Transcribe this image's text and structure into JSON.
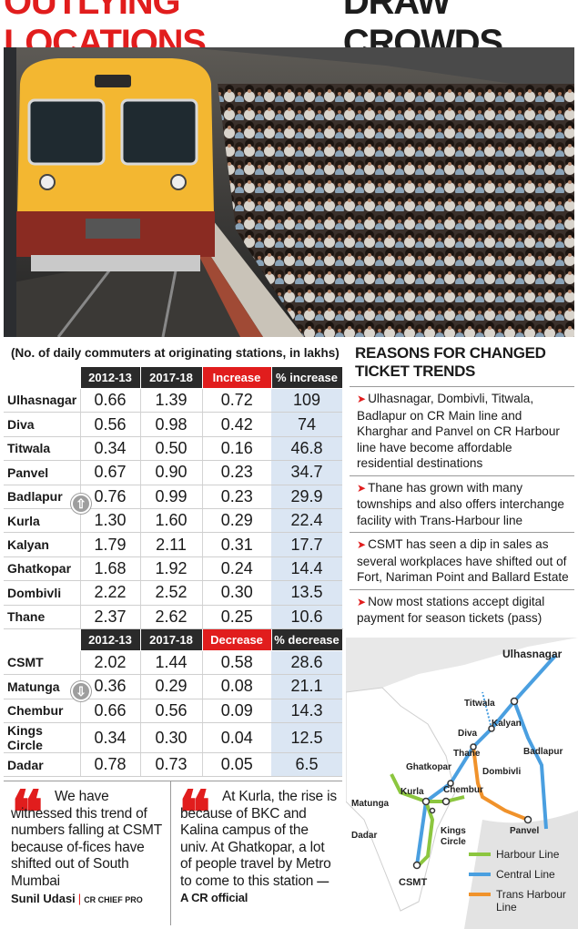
{
  "headline": {
    "part1": "OUTLYING LOCATIONS",
    "part2": "DRAW CROWDS"
  },
  "table": {
    "caption": "(No. of daily commuters at originating stations, in lakhs)",
    "increase_headers": [
      "2012-13",
      "2017-18",
      "Increase",
      "% increase"
    ],
    "increase_rows": [
      {
        "station": "Ulhasnagar",
        "y1": "0.66",
        "y2": "1.39",
        "diff": "0.72",
        "pct": "109"
      },
      {
        "station": "Diva",
        "y1": "0.56",
        "y2": "0.98",
        "diff": "0.42",
        "pct": "74"
      },
      {
        "station": "Titwala",
        "y1": "0.34",
        "y2": "0.50",
        "diff": "0.16",
        "pct": "46.8"
      },
      {
        "station": "Panvel",
        "y1": "0.67",
        "y2": "0.90",
        "diff": "0.23",
        "pct": "34.7"
      },
      {
        "station": "Badlapur",
        "y1": "0.76",
        "y2": "0.99",
        "diff": "0.23",
        "pct": "29.9"
      },
      {
        "station": "Kurla",
        "y1": "1.30",
        "y2": "1.60",
        "diff": "0.29",
        "pct": "22.4"
      },
      {
        "station": "Kalyan",
        "y1": "1.79",
        "y2": "2.11",
        "diff": "0.31",
        "pct": "17.7"
      },
      {
        "station": "Ghatkopar",
        "y1": "1.68",
        "y2": "1.92",
        "diff": "0.24",
        "pct": "14.4"
      },
      {
        "station": "Dombivli",
        "y1": "2.22",
        "y2": "2.52",
        "diff": "0.30",
        "pct": "13.5"
      },
      {
        "station": "Thane",
        "y1": "2.37",
        "y2": "2.62",
        "diff": "0.25",
        "pct": "10.6"
      }
    ],
    "decrease_headers": [
      "2012-13",
      "2017-18",
      "Decrease",
      "% decrease"
    ],
    "decrease_rows": [
      {
        "station": "CSMT",
        "y1": "2.02",
        "y2": "1.44",
        "diff": "0.58",
        "pct": "28.6"
      },
      {
        "station": "Matunga",
        "y1": "0.36",
        "y2": "0.29",
        "diff": "0.08",
        "pct": "21.1"
      },
      {
        "station": "Chembur",
        "y1": "0.66",
        "y2": "0.56",
        "diff": "0.09",
        "pct": "14.3"
      },
      {
        "station": "Kings Circle",
        "y1": "0.34",
        "y2": "0.30",
        "diff": "0.04",
        "pct": "12.5"
      },
      {
        "station": "Dadar",
        "y1": "0.78",
        "y2": "0.73",
        "diff": "0.05",
        "pct": "6.5"
      }
    ],
    "up_arrow": "⇧",
    "down_arrow": "⇩"
  },
  "reasons": {
    "title_line1": "REASONS FOR CHANGED",
    "title_line2": "TICKET TRENDS",
    "items": [
      "Ulhasnagar, Dombivli, Titwala, Badlapur on CR Main line and Kharghar and Panvel on CR Harbour line have become affordable residential destinations",
      "Thane has grown with many townships and also offers interchange facility with Trans-Harbour line",
      "CSMT has seen a dip in sales as several workplaces have shifted out of Fort, Nariman Point and Ballard Estate",
      "Now most stations accept digital payment for season tickets (pass)"
    ]
  },
  "map": {
    "stations": {
      "ulhasnagar": "Ulhasnagar",
      "titwala": "Titwala",
      "kalyan": "Kalyan",
      "diva": "Diva",
      "thane": "Thane",
      "badlapur": "Badlapur",
      "dombivli": "Dombivli",
      "ghatkopar": "Ghatkopar",
      "kurla": "Kurla",
      "chembur": "Chembur",
      "matunga": "Matunga",
      "dadar": "Dadar",
      "kings_circle_1": "Kings",
      "kings_circle_2": "Circle",
      "panvel": "Panvel",
      "csmt": "CSMT"
    },
    "legend": [
      {
        "label": "Harbour Line",
        "color": "#8cc63f"
      },
      {
        "label": "Central Line",
        "color": "#4a9fe0"
      },
      {
        "label": "Trans Harbour",
        "label2": "Line",
        "color": "#f0922b"
      }
    ]
  },
  "quotes": [
    {
      "mark": "❝",
      "text": "We have witnessed this trend of numbers falling at CSMT because of-fices have shifted out of South Mumbai",
      "author": "Sunil Udasi",
      "role": "CR CHIEF PRO"
    },
    {
      "mark": "❝",
      "text": "At Kurla, the rise is because of BKC and Kalina campus of the univ. At Ghatkopar, a lot of people travel by Metro to come to this station",
      "author": "— A CR official"
    }
  ],
  "colors": {
    "accent": "#e11d1d",
    "harbour": "#8cc63f",
    "central": "#4a9fe0",
    "trans_harbour": "#f0922b",
    "train_yellow": "#f3b731"
  }
}
